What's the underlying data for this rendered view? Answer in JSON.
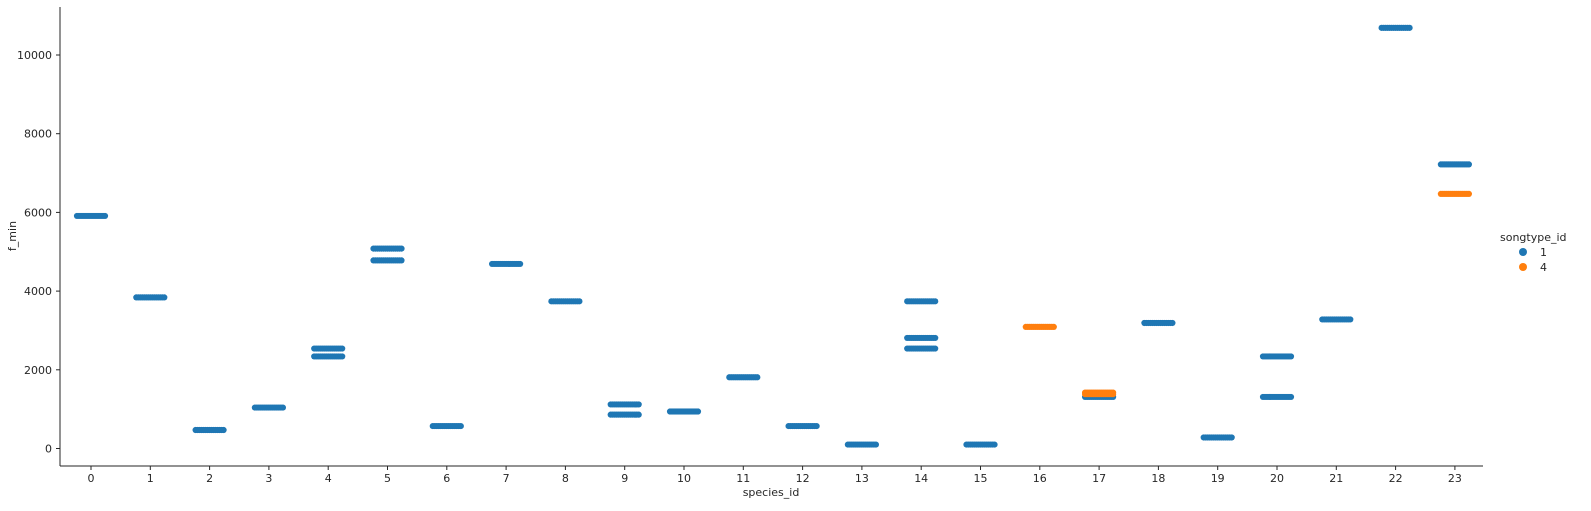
{
  "chart_data": {
    "type": "scatter",
    "xlabel": "species_id",
    "ylabel": "f_min",
    "categories": [
      "0",
      "1",
      "2",
      "3",
      "4",
      "5",
      "6",
      "7",
      "8",
      "9",
      "10",
      "11",
      "12",
      "13",
      "14",
      "15",
      "16",
      "17",
      "18",
      "19",
      "20",
      "21",
      "22",
      "23"
    ],
    "ylim": [
      -450,
      11200
    ],
    "yticks": [
      0,
      2000,
      4000,
      6000,
      8000,
      10000
    ],
    "grid": false,
    "legend": {
      "title": "songtype_id",
      "placement": "right",
      "entries": [
        {
          "label": "1",
          "color": "#1f77b4"
        },
        {
          "label": "4",
          "color": "#ff7f0e"
        }
      ]
    },
    "series": [
      {
        "name": "1",
        "color": "#1f77b4",
        "points": [
          {
            "x": 0,
            "y": 5910
          },
          {
            "x": 1,
            "y": 3840
          },
          {
            "x": 2,
            "y": 470
          },
          {
            "x": 3,
            "y": 1040
          },
          {
            "x": 4,
            "y": 2540
          },
          {
            "x": 4,
            "y": 2340
          },
          {
            "x": 5,
            "y": 5080
          },
          {
            "x": 5,
            "y": 4780
          },
          {
            "x": 6,
            "y": 570
          },
          {
            "x": 7,
            "y": 4690
          },
          {
            "x": 8,
            "y": 3740
          },
          {
            "x": 9,
            "y": 1120
          },
          {
            "x": 9,
            "y": 860
          },
          {
            "x": 10,
            "y": 940
          },
          {
            "x": 11,
            "y": 1810
          },
          {
            "x": 12,
            "y": 570
          },
          {
            "x": 13,
            "y": 100
          },
          {
            "x": 14,
            "y": 3740
          },
          {
            "x": 14,
            "y": 2810
          },
          {
            "x": 14,
            "y": 2540
          },
          {
            "x": 15,
            "y": 100
          },
          {
            "x": 17,
            "y": 1310
          },
          {
            "x": 18,
            "y": 3190
          },
          {
            "x": 19,
            "y": 280
          },
          {
            "x": 20,
            "y": 2340
          },
          {
            "x": 20,
            "y": 1310
          },
          {
            "x": 21,
            "y": 3280
          },
          {
            "x": 22,
            "y": 10690
          },
          {
            "x": 23,
            "y": 7220
          }
        ]
      },
      {
        "name": "4",
        "color": "#ff7f0e",
        "points": [
          {
            "x": 16,
            "y": 3090
          },
          {
            "x": 17,
            "y": 1420
          },
          {
            "x": 17,
            "y": 1380
          },
          {
            "x": 23,
            "y": 6470
          }
        ]
      }
    ]
  }
}
